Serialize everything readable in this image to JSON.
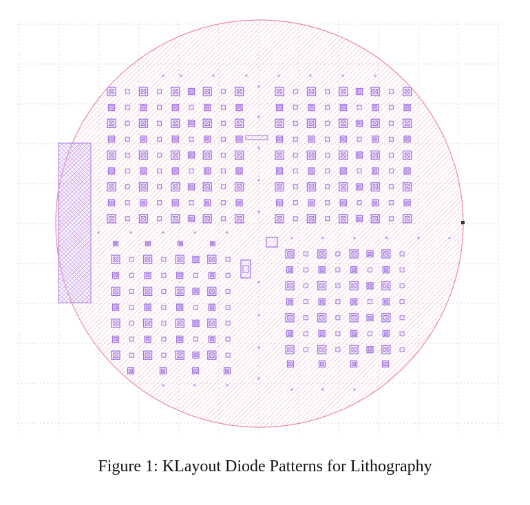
{
  "caption": "Figure 1: KLayout Diode Patterns for Lithography",
  "colors": {
    "wafer_stroke": "#e88aaa",
    "wafer_hatch": "#f1a7c0",
    "device_stroke": "#a070e0",
    "device_fill_hatch": "#c9a8f0",
    "grid_dot": "#c8c8c8",
    "flat_marker": "#333333"
  },
  "layout": {
    "wafer": "circular wafer with diagonal hatch",
    "grid": "dotted background grid",
    "left_block": "cross-hatched rectangular block on left edge of wafer",
    "quadrants": [
      "upper-left diode array",
      "upper-right diode array",
      "lower-left diode array",
      "lower-right diode array"
    ],
    "center_features": [
      "horizontal alignment bar",
      "square alignment mark",
      "vertical test structure"
    ]
  }
}
